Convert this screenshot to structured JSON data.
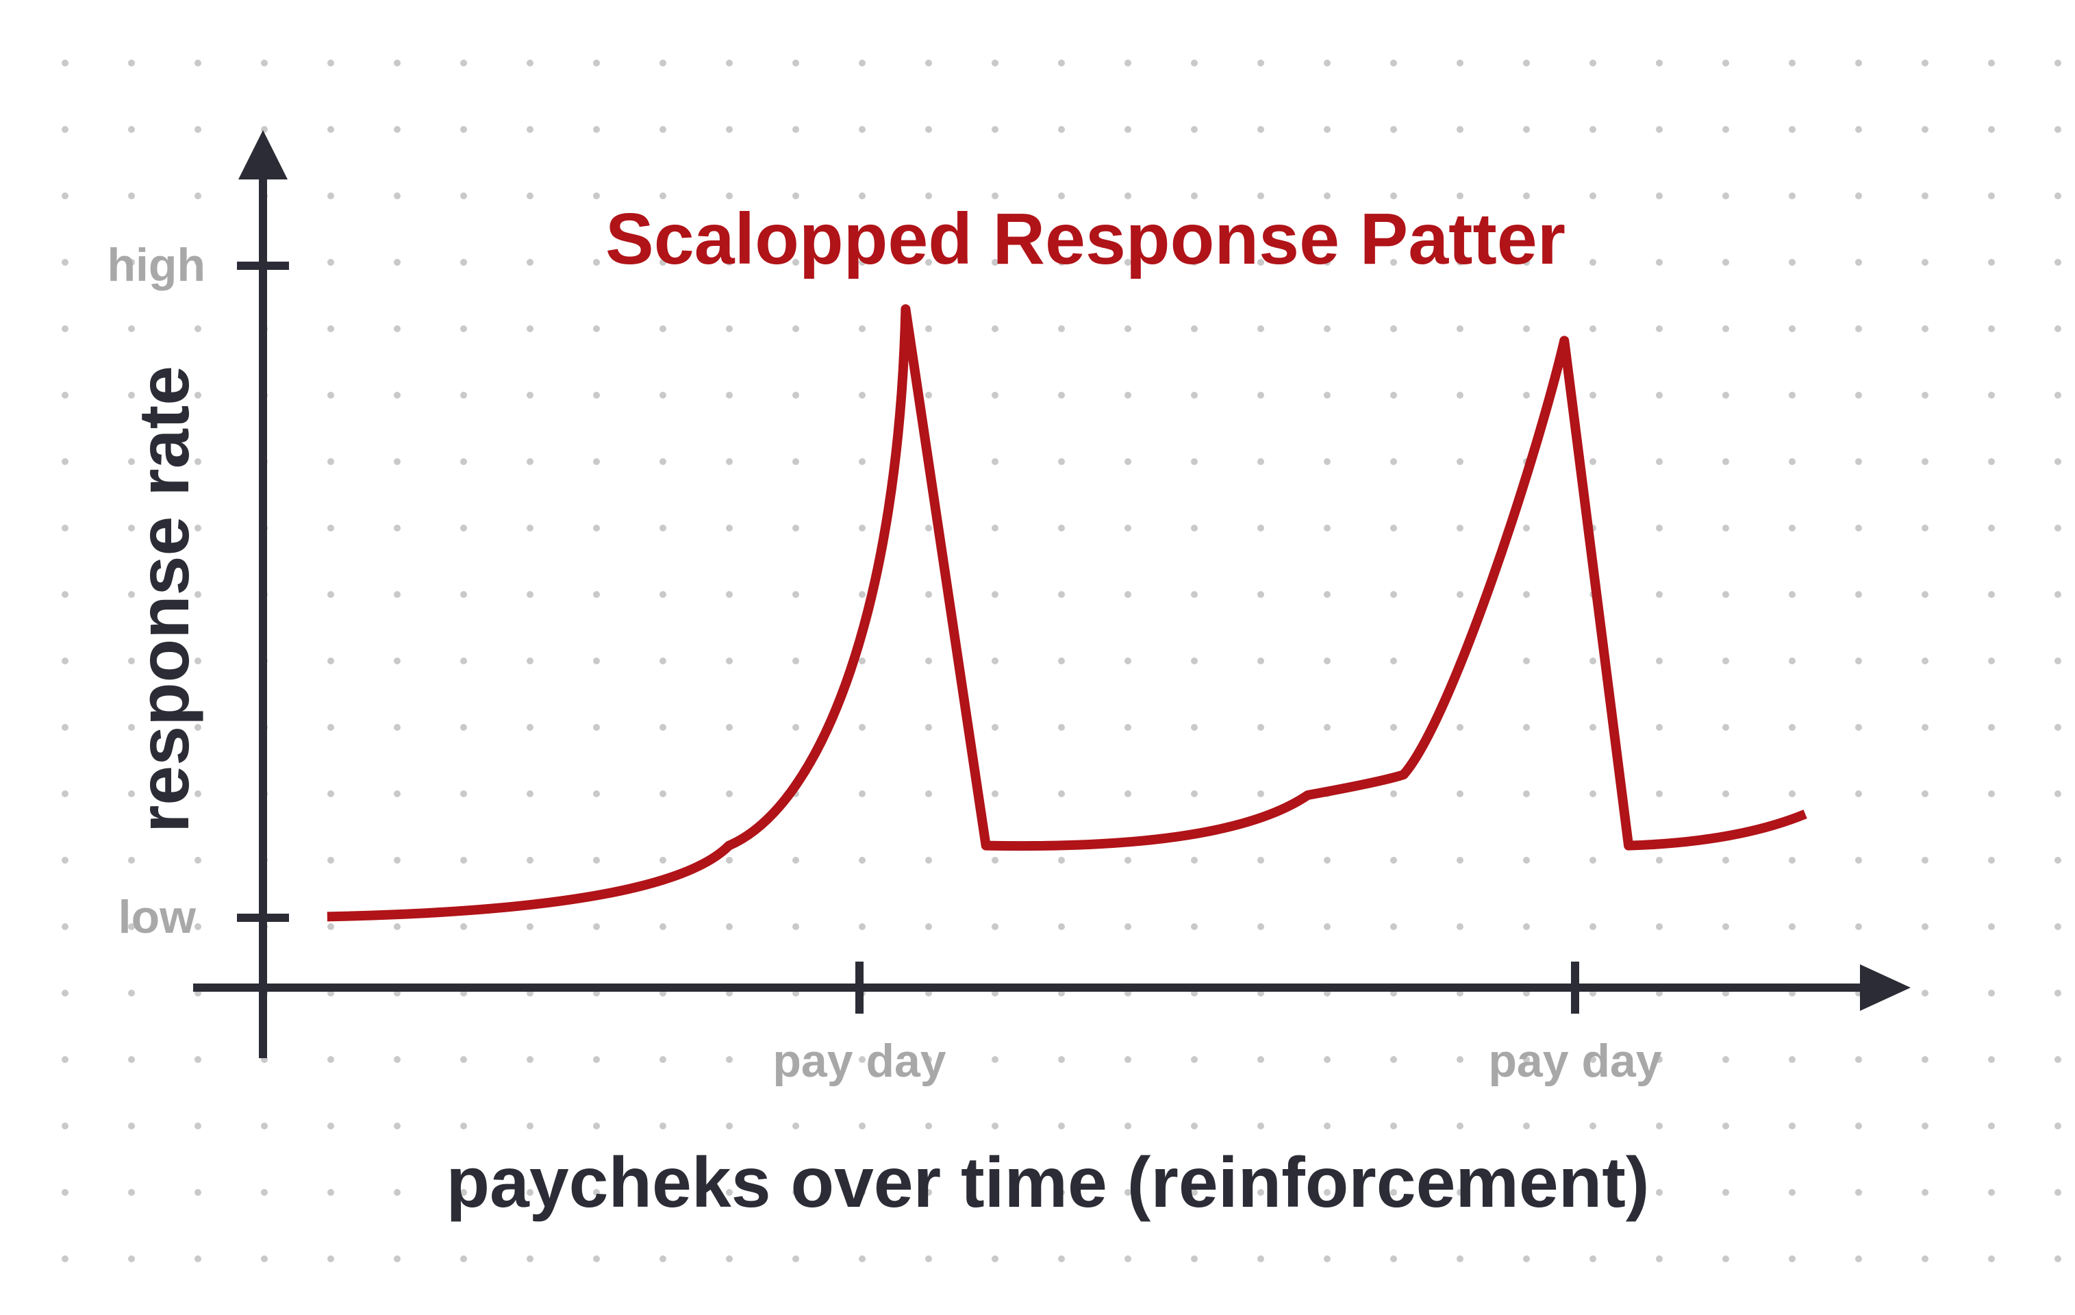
{
  "chart_data": {
    "type": "line",
    "title": "Scalopped Response Patter",
    "xlabel": "paycheks over time (reinforcement)",
    "ylabel": "response rate",
    "y_ticks": [
      "low",
      "high"
    ],
    "x_ticks": [
      "pay day",
      "pay day"
    ],
    "ylim": [
      0,
      1
    ],
    "xlim": [
      0,
      1
    ],
    "grid": "dotted background",
    "series": [
      {
        "x": [
          0.04,
          0.29,
          0.4,
          0.4,
          0.45,
          0.6,
          0.71,
          0.81,
          0.85,
          0.85,
          0.96
        ],
        "values": [
          0.09,
          0.18,
          0.86,
          0.86,
          0.18,
          0.19,
          0.27,
          0.82,
          0.82,
          0.18,
          0.22
        ]
      }
    ]
  },
  "colors": {
    "accent": "#b01318",
    "axis": "#2b2c35",
    "tick_label": "#a8a8a8",
    "dot_grid": "#c9c9c9",
    "background": "#ffffff"
  }
}
